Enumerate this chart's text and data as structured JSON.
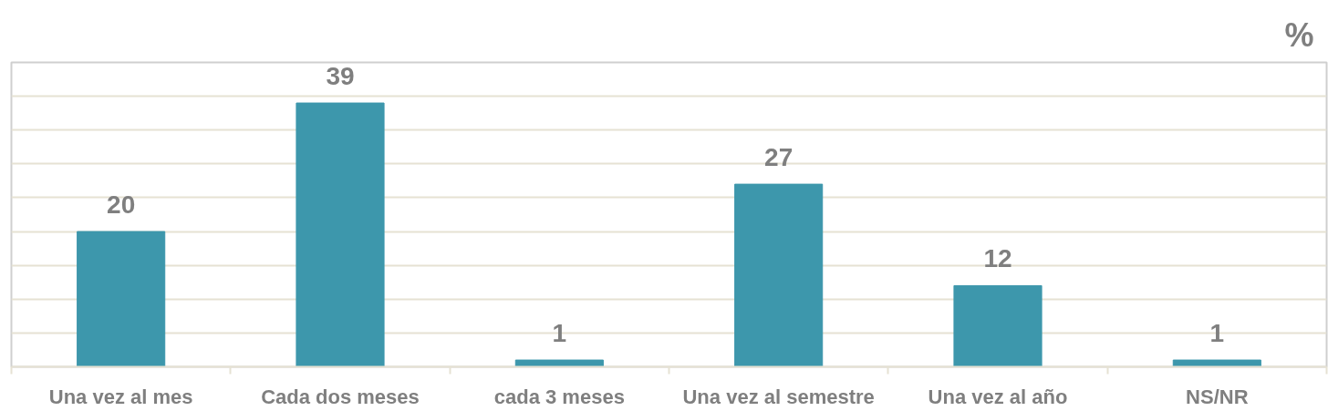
{
  "chart_data": {
    "type": "bar",
    "ylabel": "%",
    "categories": [
      "Una vez al mes",
      "Cada dos meses",
      "cada 3 meses",
      "Una vez al semestre",
      "Una vez al año",
      "NS/NR"
    ],
    "values": [
      20,
      39,
      1,
      27,
      12,
      1
    ],
    "color": "#3d97ac",
    "ylim": [
      0,
      45
    ],
    "yticks": [
      0,
      5,
      10,
      15,
      20,
      25,
      30,
      35,
      40,
      45
    ],
    "grid": "y",
    "data_labels": true,
    "tick_labels": "x"
  }
}
